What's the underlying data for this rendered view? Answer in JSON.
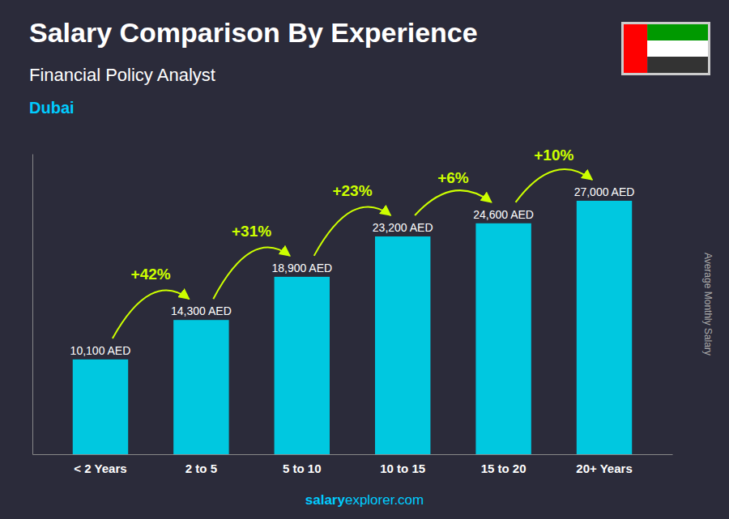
{
  "chart_data": {
    "type": "bar",
    "title": "Salary Comparison By Experience",
    "subtitle": "Financial Policy Analyst",
    "city": "Dubai",
    "ylabel": "Average Monthly Salary",
    "watermark": [
      "salary",
      "explorer.com"
    ],
    "categories": [
      "< 2 Years",
      "2 to 5",
      "5 to 10",
      "10 to 15",
      "15 to 20",
      "20+ Years"
    ],
    "values": [
      10100,
      14300,
      18900,
      23200,
      24600,
      27000
    ],
    "value_labels": [
      "10,100 AED",
      "14,300 AED",
      "18,900 AED",
      "23,200 AED",
      "24,600 AED",
      "27,000 AED"
    ],
    "data_labels": true,
    "annotations": [
      null,
      "+42%",
      "+31%",
      "+23%",
      "+6%",
      "+10%"
    ],
    "color": "#00c8e0",
    "ylim": [
      0,
      32000
    ],
    "tick_labels": "x",
    "grid": false
  }
}
